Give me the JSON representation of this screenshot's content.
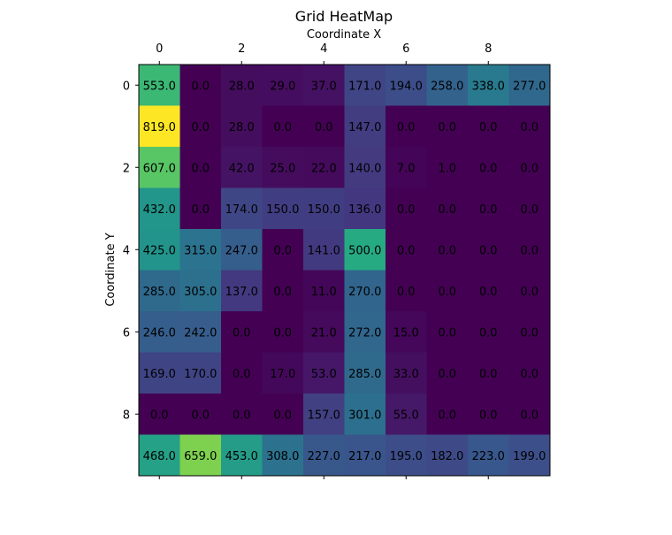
{
  "chart_data": {
    "type": "heatmap",
    "title": "Grid HeatMap",
    "xlabel": "Coordinate X",
    "ylabel": "Coordinate Y",
    "x_ticks": [
      "0",
      "2",
      "4",
      "6",
      "8"
    ],
    "y_ticks": [
      "0",
      "2",
      "4",
      "6",
      "8"
    ],
    "x_axis_position": "top",
    "colormap": "viridis",
    "vmin": 0,
    "vmax": 819,
    "grid": false,
    "values": [
      [
        553,
        0,
        28,
        29,
        37,
        171,
        194,
        258,
        338,
        277
      ],
      [
        819,
        0,
        28,
        0,
        0,
        147,
        0,
        0,
        0,
        0
      ],
      [
        607,
        0,
        42,
        25,
        22,
        140,
        7,
        1,
        0,
        0
      ],
      [
        432,
        0,
        174,
        150,
        150,
        136,
        0,
        0,
        0,
        0
      ],
      [
        425,
        315,
        247,
        0,
        141,
        500,
        0,
        0,
        0,
        0
      ],
      [
        285,
        305,
        137,
        0,
        11,
        270,
        0,
        0,
        0,
        0
      ],
      [
        246,
        242,
        0,
        0,
        21,
        272,
        15,
        0,
        0,
        0
      ],
      [
        169,
        170,
        0,
        17,
        53,
        285,
        33,
        0,
        0,
        0
      ],
      [
        0,
        0,
        0,
        0,
        157,
        301,
        55,
        0,
        0,
        0
      ],
      [
        468,
        659,
        453,
        308,
        227,
        217,
        195,
        182,
        223,
        199
      ]
    ],
    "cell_labels": [
      [
        "553.0",
        "0.0",
        "28.0",
        "29.0",
        "37.0",
        "171.0",
        "194.0",
        "258.0",
        "338.0",
        "277.0"
      ],
      [
        "819.0",
        "0.0",
        "28.0",
        "0.0",
        "0.0",
        "147.0",
        "0.0",
        "0.0",
        "0.0",
        "0.0"
      ],
      [
        "607.0",
        "0.0",
        "42.0",
        "25.0",
        "22.0",
        "140.0",
        "7.0",
        "1.0",
        "0.0",
        "0.0"
      ],
      [
        "432.0",
        "0.0",
        "174.0",
        "150.0",
        "150.0",
        "136.0",
        "0.0",
        "0.0",
        "0.0",
        "0.0"
      ],
      [
        "425.0",
        "315.0",
        "247.0",
        "0.0",
        "141.0",
        "500.0",
        "0.0",
        "0.0",
        "0.0",
        "0.0"
      ],
      [
        "285.0",
        "305.0",
        "137.0",
        "0.0",
        "11.0",
        "270.0",
        "0.0",
        "0.0",
        "0.0",
        "0.0"
      ],
      [
        "246.0",
        "242.0",
        "0.0",
        "0.0",
        "21.0",
        "272.0",
        "15.0",
        "0.0",
        "0.0",
        "0.0"
      ],
      [
        "169.0",
        "170.0",
        "0.0",
        "17.0",
        "53.0",
        "285.0",
        "33.0",
        "0.0",
        "0.0",
        "0.0"
      ],
      [
        "0.0",
        "0.0",
        "0.0",
        "0.0",
        "157.0",
        "301.0",
        "55.0",
        "0.0",
        "0.0",
        "0.0"
      ],
      [
        "468.0",
        "659.0",
        "453.0",
        "308.0",
        "227.0",
        "217.0",
        "195.0",
        "182.0",
        "223.0",
        "199.0"
      ]
    ]
  }
}
